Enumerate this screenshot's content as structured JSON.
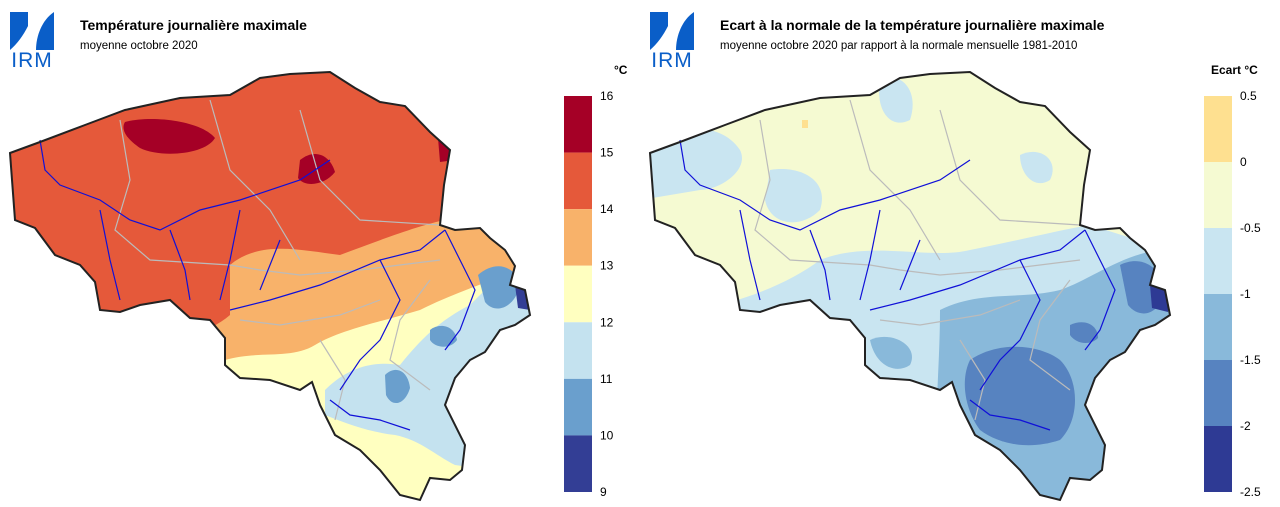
{
  "logo_text": "IRM",
  "left": {
    "title": "Température journalière maximale",
    "subtitle": "moyenne octobre 2020",
    "unit": "°C",
    "legend": {
      "ticks": [
        "16",
        "15",
        "14",
        "13",
        "12",
        "11",
        "10",
        "9"
      ],
      "colors": [
        "#a50026",
        "#e5593a",
        "#f8b26a",
        "#ffffc0",
        "#c4e2ef",
        "#6a9fcd",
        "#333e95"
      ]
    }
  },
  "right": {
    "title": "Ecart à la normale de la température journalière maximale",
    "subtitle": "moyenne octobre 2020 par rapport à la normale mensuelle 1981-2010",
    "unit": "Ecart  °C",
    "legend": {
      "ticks": [
        "0.5",
        "0",
        "-0.5",
        "-1",
        "-1.5",
        "-2",
        "-2.5"
      ],
      "colors": [
        "#fee090",
        "#f5fad2",
        "#c9e5f1",
        "#89b9da",
        "#5783c0",
        "#2e3a94"
      ]
    }
  },
  "colors": {
    "logo_blue": "#0a5ec8",
    "border": "#222222",
    "province_lines": "#bbbbbb",
    "rivers": "#1010d8"
  }
}
